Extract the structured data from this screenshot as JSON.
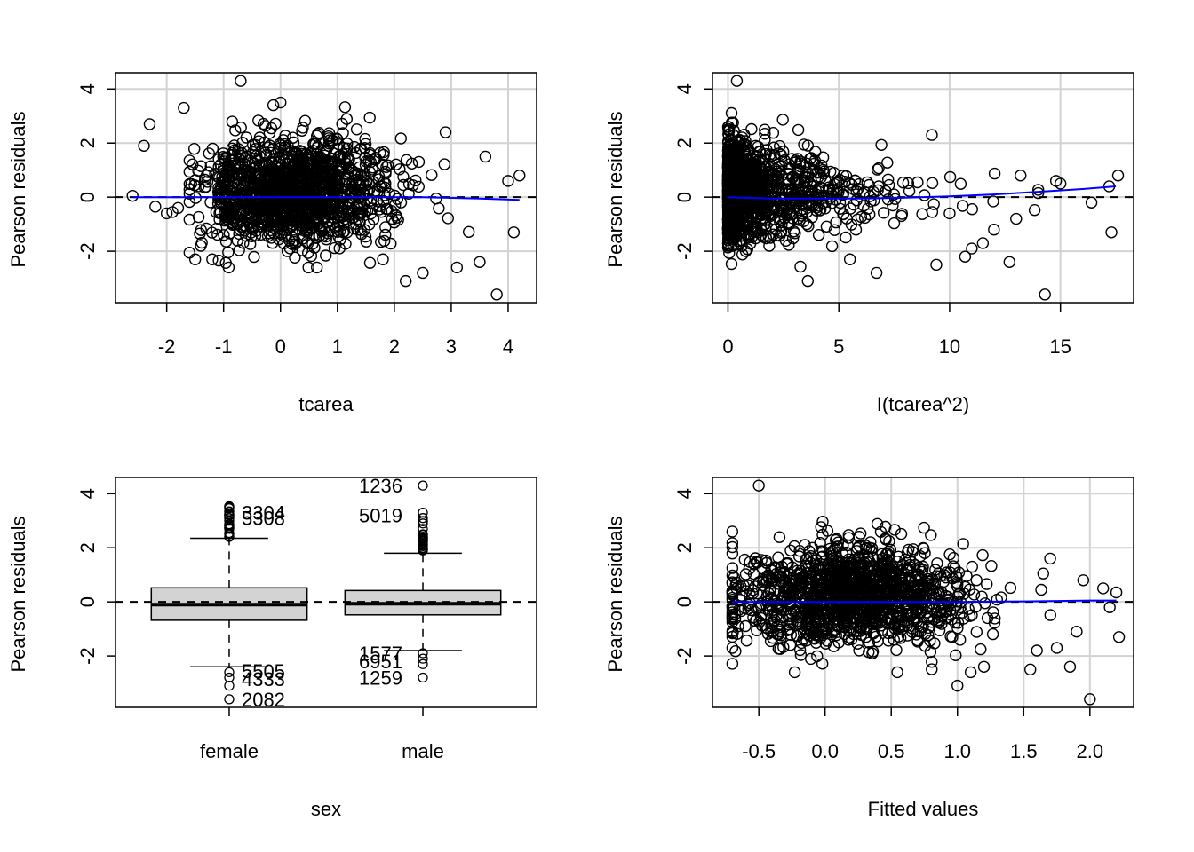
{
  "figure": {
    "description_panels": [
      "tcarea",
      "I(tcarea^2)",
      "sex",
      "Fitted values"
    ]
  },
  "chart_data": [
    {
      "type": "scatter",
      "title": "",
      "xlabel": "tcarea",
      "ylabel": "Pearson residuals",
      "xlim": [
        -2.9,
        4.5
      ],
      "ylim": [
        -3.9,
        4.6
      ],
      "x_ticks": [
        -2,
        -1,
        0,
        1,
        2,
        3,
        4
      ],
      "x_tick_labels": [
        "-2",
        "-1",
        "0",
        "1",
        "2",
        "3",
        "4"
      ],
      "y_ticks": [
        -2,
        0,
        2,
        4
      ],
      "y_tick_labels": [
        "-2",
        "0",
        "2",
        "4"
      ],
      "grid": true,
      "reference_line": {
        "y": 0,
        "style": "dashed",
        "color": "#000000"
      },
      "smooth_line": {
        "color": "#0000ff",
        "x": [
          -2.6,
          -1.5,
          -0.5,
          0.5,
          1.5,
          2.5,
          3.5,
          4.2
        ],
        "y": [
          0.0,
          0.0,
          0.0,
          0.0,
          0.0,
          0.0,
          -0.05,
          -0.1
        ]
      },
      "sample_points": {
        "x": [
          -2.6,
          -2.3,
          -2.2,
          -2.4,
          -2.0,
          -1.9,
          -1.8,
          -1.7,
          -1.5,
          -1.4,
          -1.3,
          -1.2,
          -0.7,
          0.0,
          1.8,
          2.2,
          2.5,
          2.9,
          3.1,
          3.5,
          3.6,
          3.8,
          4.0,
          4.1,
          4.2
        ],
        "y": [
          0.05,
          2.7,
          -0.35,
          1.9,
          -0.6,
          -0.55,
          -0.4,
          3.3,
          -2.3,
          -1.8,
          0.8,
          -2.3,
          4.3,
          3.5,
          -2.3,
          -3.1,
          -2.8,
          2.4,
          -2.6,
          -2.4,
          1.5,
          -3.6,
          0.6,
          -1.3,
          0.8
        ]
      }
    },
    {
      "type": "scatter",
      "title": "",
      "xlabel": "I(tcarea^2)",
      "ylabel": "Pearson residuals",
      "xlim": [
        -0.7,
        18.3
      ],
      "ylim": [
        -3.9,
        4.6
      ],
      "x_ticks": [
        0,
        5,
        10,
        15
      ],
      "x_tick_labels": [
        "0",
        "5",
        "10",
        "15"
      ],
      "y_ticks": [
        -2,
        0,
        2,
        4
      ],
      "y_tick_labels": [
        "-2",
        "0",
        "2",
        "4"
      ],
      "grid": true,
      "reference_line": {
        "y": 0,
        "style": "dashed",
        "color": "#000000"
      },
      "smooth_line": {
        "color": "#0000ff",
        "x": [
          0,
          2,
          4,
          6,
          8,
          10,
          12,
          14,
          16,
          17.5
        ],
        "y": [
          0.0,
          -0.05,
          -0.05,
          -0.05,
          -0.02,
          0.03,
          0.1,
          0.2,
          0.3,
          0.4
        ]
      },
      "sample_points": {
        "x": [
          0.4,
          3.6,
          5.5,
          6.7,
          9.2,
          9.4,
          10.0,
          10.7,
          11.0,
          11.5,
          12.0,
          12.7,
          13.0,
          13.2,
          14.3,
          14.8,
          15.0,
          16.4,
          17.2,
          17.3,
          17.6
        ],
        "y": [
          4.3,
          -3.1,
          -2.3,
          -2.8,
          2.3,
          -2.5,
          -0.6,
          -2.2,
          -1.9,
          -1.7,
          -1.2,
          -2.4,
          -0.8,
          0.8,
          -3.6,
          0.6,
          0.5,
          -0.2,
          0.4,
          -1.3,
          0.8
        ]
      }
    },
    {
      "type": "box",
      "title": "",
      "xlabel": "sex",
      "ylabel": "Pearson residuals",
      "ylim": [
        -3.9,
        4.6
      ],
      "categories": [
        "female",
        "male"
      ],
      "y_ticks": [
        -2,
        0,
        2,
        4
      ],
      "y_tick_labels": [
        "-2",
        "0",
        "2",
        "4"
      ],
      "grid": false,
      "reference_line": {
        "y": 0,
        "style": "dashed",
        "color": "#000000"
      },
      "box_fill": "#d3d3d3",
      "boxes": [
        {
          "name": "female",
          "whisker_low": -2.4,
          "q1": -0.68,
          "median": -0.1,
          "q3": 0.52,
          "whisker_high": 2.35
        },
        {
          "name": "male",
          "whisker_low": -1.8,
          "q1": -0.48,
          "median": -0.07,
          "q3": 0.42,
          "whisker_high": 1.8
        }
      ],
      "outliers": [
        {
          "group": "female",
          "y": [
            2.4,
            2.5,
            2.7,
            3.0,
            3.1,
            3.2,
            3.35,
            3.5,
            -2.6,
            -2.8,
            -3.1,
            -3.6
          ]
        },
        {
          "group": "male",
          "y": [
            1.9,
            2.0,
            2.1,
            2.3,
            2.5,
            2.7,
            2.9,
            3.1,
            3.3,
            4.3,
            -1.9,
            -2.1,
            -2.3,
            -2.8
          ]
        }
      ],
      "outlier_labels": [
        {
          "group": "female",
          "y": 3.3,
          "text": "3304"
        },
        {
          "group": "female",
          "y": 3.1,
          "text": "5308"
        },
        {
          "group": "female",
          "y": -2.55,
          "text": "5505"
        },
        {
          "group": "female",
          "y": -2.85,
          "text": "4333"
        },
        {
          "group": "female",
          "y": -3.6,
          "text": "2082"
        },
        {
          "group": "male",
          "y": 4.3,
          "text": "1236"
        },
        {
          "group": "male",
          "y": 3.2,
          "text": "5019"
        },
        {
          "group": "male",
          "y": -1.9,
          "text": "1577"
        },
        {
          "group": "male",
          "y": -2.2,
          "text": "6951"
        },
        {
          "group": "male",
          "y": -2.8,
          "text": "1259"
        }
      ]
    },
    {
      "type": "scatter",
      "title": "",
      "xlabel": "Fitted values",
      "ylabel": "Pearson residuals",
      "xlim": [
        -0.85,
        2.33
      ],
      "ylim": [
        -3.9,
        4.6
      ],
      "x_ticks": [
        -0.5,
        0.0,
        0.5,
        1.0,
        1.5,
        2.0
      ],
      "x_tick_labels": [
        "-0.5",
        "0.0",
        "0.5",
        "1.0",
        "1.5",
        "2.0"
      ],
      "y_ticks": [
        -2,
        0,
        2,
        4
      ],
      "y_tick_labels": [
        "-2",
        "0",
        "2",
        "4"
      ],
      "grid": true,
      "reference_line": {
        "y": 0,
        "style": "dashed",
        "color": "#000000"
      },
      "smooth_line": {
        "color": "#0000ff",
        "x": [
          -0.7,
          -0.3,
          0.0,
          0.5,
          1.0,
          1.5,
          2.0,
          2.2
        ],
        "y": [
          0.0,
          0.0,
          0.0,
          0.0,
          0.0,
          0.02,
          0.05,
          0.05
        ]
      },
      "sample_points": {
        "x": [
          -0.7,
          -0.5,
          1.0,
          1.1,
          1.2,
          1.55,
          1.6,
          1.7,
          1.75,
          1.85,
          1.9,
          1.95,
          2.0,
          2.1,
          2.15,
          2.2,
          2.22
        ],
        "y": [
          2.6,
          4.3,
          -3.1,
          -2.6,
          -2.4,
          -2.5,
          -1.8,
          1.6,
          -1.7,
          -2.4,
          -1.1,
          0.8,
          -3.6,
          0.5,
          -0.2,
          0.35,
          -1.3
        ]
      }
    }
  ]
}
